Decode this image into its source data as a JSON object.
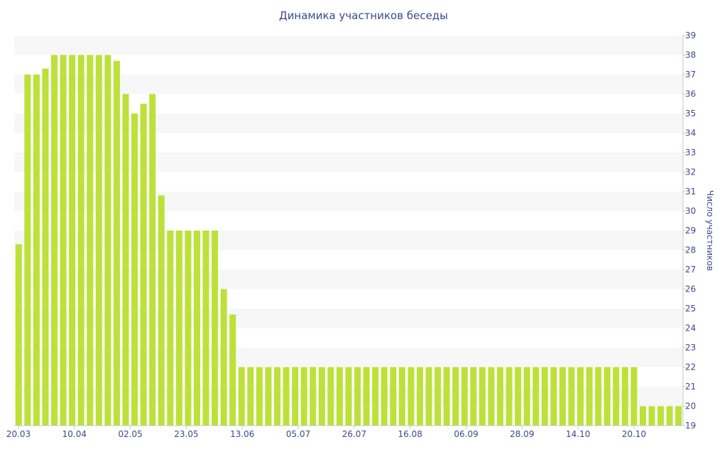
{
  "chart_data": {
    "type": "bar",
    "title": "Динамика участников беседы",
    "ylabel": "Число участников",
    "xlabel": "",
    "ylim": [
      19,
      39
    ],
    "y_ticks": [
      19,
      20,
      21,
      22,
      23,
      24,
      25,
      26,
      27,
      28,
      29,
      30,
      31,
      32,
      33,
      34,
      35,
      36,
      37,
      38,
      39
    ],
    "x_tick_labels": [
      "20.03",
      "10.04",
      "02.05",
      "23.05",
      "13.06",
      "05.07",
      "26.07",
      "16.08",
      "06.09",
      "28.09",
      "14.10",
      "20.10"
    ],
    "bar_color": "#bde13a",
    "grid": "alternating horizontal bands",
    "values": [
      28.3,
      37,
      37,
      37.3,
      38,
      38,
      38,
      38,
      38,
      38,
      38,
      37.7,
      36,
      35,
      35.5,
      36,
      30.8,
      29,
      29,
      29,
      29,
      29,
      29,
      26,
      24.7,
      22,
      22,
      22,
      22,
      22,
      22,
      22,
      22,
      22,
      22,
      22,
      22,
      22,
      22,
      22,
      22,
      22,
      22,
      22,
      22,
      22,
      22,
      22,
      22,
      22,
      22,
      22,
      22,
      22,
      22,
      22,
      22,
      22,
      22,
      22,
      22,
      22,
      22,
      22,
      22,
      22,
      22,
      22,
      22,
      22,
      20,
      20,
      20,
      20,
      20
    ]
  }
}
